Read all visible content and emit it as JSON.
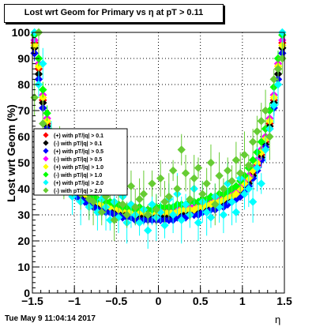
{
  "title": "Lost wrt Geom for Primary vs   η at pT > 0.11",
  "footer_text": "Tue May  9 11:04:14 2017",
  "chart_data": {
    "type": "scatter",
    "title": "Lost wrt Geom for Primary vs   η at pT > 0.11",
    "xlabel": "η",
    "ylabel": "Lost wrt Geom (%)",
    "xlim": [
      -1.5,
      1.5
    ],
    "ylim": [
      0,
      100
    ],
    "x_ticks": [
      "−1.5",
      "−1",
      "−0.5",
      "0",
      "0.5",
      "1",
      "1.5"
    ],
    "y_ticks": [
      "0",
      "10",
      "20",
      "30",
      "40",
      "50",
      "60",
      "70",
      "80",
      "90",
      "100"
    ],
    "grid": true,
    "legend_position": "center-left",
    "legend_entries": [
      "(+) with pT/|q| > 0.1",
      "(-) with pT/|q| > 0.1",
      "(+) with pT/|q| > 0.5",
      "(-) with pT/|q| > 0.5",
      "(+) with pT/|q| > 1.0",
      "(-) with pT/|q| > 1.0",
      "(+) with pT/|q| > 2.0",
      "(-) with pT/|q| > 2.0"
    ],
    "series": [
      {
        "color": "#ff0000",
        "x": [
          -1.475,
          -1.425,
          -1.375,
          -1.325,
          -1.275,
          -1.225,
          -1.175,
          -1.125,
          -1.075,
          -1.025,
          -0.975,
          -0.925,
          -0.875,
          -0.825,
          -0.775,
          -0.725,
          -0.675,
          -0.625,
          -0.575,
          -0.525,
          -0.475,
          -0.425,
          -0.375,
          -0.325,
          -0.275,
          -0.225,
          -0.175,
          -0.125,
          -0.075,
          -0.025,
          0.025,
          0.075,
          0.125,
          0.175,
          0.225,
          0.275,
          0.325,
          0.375,
          0.425,
          0.475,
          0.525,
          0.575,
          0.625,
          0.675,
          0.725,
          0.775,
          0.825,
          0.875,
          0.925,
          0.975,
          1.025,
          1.075,
          1.125,
          1.175,
          1.225,
          1.275,
          1.325,
          1.375,
          1.425,
          1.475
        ],
        "y": [
          96,
          86,
          74,
          65,
          58,
          53,
          49,
          46,
          43,
          41,
          39,
          38,
          37,
          36,
          35,
          34,
          33,
          33,
          32,
          32,
          31,
          31,
          31,
          30,
          30,
          30,
          30,
          30,
          30,
          30,
          30,
          30,
          30,
          30,
          30,
          31,
          31,
          31,
          31,
          32,
          32,
          33,
          33,
          33,
          34,
          35,
          36,
          36,
          37,
          39,
          41,
          43,
          46,
          49,
          53,
          58,
          65,
          74,
          86,
          96
        ]
      },
      {
        "color": "#000000",
        "x": [
          -1.475,
          -1.425,
          -1.375,
          -1.325,
          -1.275,
          -1.225,
          -1.175,
          -1.125,
          -1.075,
          -1.025,
          -0.975,
          -0.925,
          -0.875,
          -0.825,
          -0.775,
          -0.725,
          -0.675,
          -0.625,
          -0.575,
          -0.525,
          -0.475,
          -0.425,
          -0.375,
          -0.325,
          -0.275,
          -0.225,
          -0.175,
          -0.125,
          -0.075,
          -0.025,
          0.025,
          0.075,
          0.125,
          0.175,
          0.225,
          0.275,
          0.325,
          0.375,
          0.425,
          0.475,
          0.525,
          0.575,
          0.625,
          0.675,
          0.725,
          0.775,
          0.825,
          0.875,
          0.925,
          0.975,
          1.025,
          1.075,
          1.125,
          1.175,
          1.225,
          1.275,
          1.325,
          1.375,
          1.425,
          1.475
        ],
        "y": [
          94,
          84,
          73,
          64,
          57,
          52,
          48,
          45,
          42,
          40,
          38,
          37,
          36,
          35,
          34,
          33,
          33,
          32,
          32,
          31,
          31,
          30,
          30,
          30,
          29,
          29,
          29,
          29,
          29,
          29,
          29,
          29,
          29,
          29,
          30,
          30,
          30,
          31,
          31,
          31,
          32,
          32,
          33,
          33,
          34,
          34,
          35,
          36,
          37,
          38,
          40,
          42,
          45,
          48,
          52,
          57,
          64,
          73,
          84,
          94
        ]
      },
      {
        "color": "#0000ff",
        "x": [
          -1.475,
          -1.425,
          -1.375,
          -1.325,
          -1.275,
          -1.225,
          -1.175,
          -1.125,
          -1.075,
          -1.025,
          -0.975,
          -0.925,
          -0.875,
          -0.825,
          -0.775,
          -0.725,
          -0.675,
          -0.625,
          -0.575,
          -0.525,
          -0.475,
          -0.425,
          -0.375,
          -0.325,
          -0.275,
          -0.225,
          -0.175,
          -0.125,
          -0.075,
          -0.025,
          0.025,
          0.075,
          0.125,
          0.175,
          0.225,
          0.275,
          0.325,
          0.375,
          0.425,
          0.475,
          0.525,
          0.575,
          0.625,
          0.675,
          0.725,
          0.775,
          0.825,
          0.875,
          0.925,
          0.975,
          1.025,
          1.075,
          1.125,
          1.175,
          1.225,
          1.275,
          1.325,
          1.375,
          1.425,
          1.475
        ],
        "y": [
          92,
          82,
          71,
          63,
          56,
          51,
          47,
          44,
          41,
          39,
          37,
          36,
          35,
          34,
          33,
          32,
          32,
          31,
          31,
          30,
          30,
          29,
          29,
          29,
          28,
          28,
          28,
          28,
          28,
          28,
          28,
          28,
          28,
          28,
          29,
          29,
          29,
          30,
          30,
          30,
          31,
          31,
          32,
          32,
          33,
          33,
          34,
          35,
          36,
          37,
          39,
          41,
          44,
          47,
          51,
          56,
          63,
          71,
          82,
          92
        ]
      },
      {
        "color": "#ff00ff",
        "x": [
          -1.475,
          -1.425,
          -1.375,
          -1.325,
          -1.275,
          -1.225,
          -1.175,
          -1.125,
          -1.075,
          -1.025,
          -0.975,
          -0.925,
          -0.875,
          -0.825,
          -0.775,
          -0.725,
          -0.675,
          -0.625,
          -0.575,
          -0.525,
          -0.475,
          -0.425,
          -0.375,
          -0.325,
          -0.275,
          -0.225,
          -0.175,
          -0.125,
          -0.075,
          -0.025,
          0.025,
          0.075,
          0.125,
          0.175,
          0.225,
          0.275,
          0.325,
          0.375,
          0.425,
          0.475,
          0.525,
          0.575,
          0.625,
          0.675,
          0.725,
          0.775,
          0.825,
          0.875,
          0.925,
          0.975,
          1.025,
          1.075,
          1.125,
          1.175,
          1.225,
          1.275,
          1.325,
          1.375,
          1.425,
          1.475
        ],
        "y": [
          97,
          88,
          76,
          67,
          60,
          55,
          51,
          48,
          45,
          43,
          41,
          40,
          39,
          38,
          37,
          36,
          35,
          35,
          34,
          34,
          33,
          33,
          33,
          32,
          32,
          32,
          32,
          32,
          32,
          32,
          32,
          32,
          32,
          32,
          32,
          33,
          33,
          33,
          33,
          34,
          34,
          35,
          35,
          36,
          36,
          37,
          38,
          38,
          39,
          41,
          43,
          45,
          48,
          51,
          55,
          60,
          67,
          76,
          88,
          97
        ]
      },
      {
        "color": "#ffff00",
        "x": [
          -1.475,
          -1.425,
          -1.375,
          -1.325,
          -1.275,
          -1.225,
          -1.175,
          -1.125,
          -1.075,
          -1.025,
          -0.975,
          -0.925,
          -0.875,
          -0.825,
          -0.775,
          -0.725,
          -0.675,
          -0.625,
          -0.575,
          -0.525,
          -0.475,
          -0.425,
          -0.375,
          -0.325,
          -0.275,
          -0.225,
          -0.175,
          -0.125,
          -0.075,
          -0.025,
          0.025,
          0.075,
          0.125,
          0.175,
          0.225,
          0.275,
          0.325,
          0.375,
          0.425,
          0.475,
          0.525,
          0.575,
          0.625,
          0.675,
          0.725,
          0.775,
          0.825,
          0.875,
          0.925,
          0.975,
          1.025,
          1.075,
          1.125,
          1.175,
          1.225,
          1.275,
          1.325,
          1.375,
          1.425,
          1.475
        ],
        "y": [
          95,
          87,
          75,
          66,
          59,
          54,
          50,
          47,
          44,
          42,
          40,
          39,
          38,
          37,
          36,
          35,
          34,
          34,
          33,
          33,
          32,
          32,
          32,
          31,
          31,
          31,
          31,
          31,
          31,
          31,
          31,
          31,
          31,
          31,
          31,
          32,
          32,
          32,
          32,
          33,
          33,
          34,
          34,
          35,
          35,
          36,
          37,
          37,
          38,
          40,
          42,
          44,
          47,
          50,
          54,
          59,
          66,
          75,
          87,
          95
        ]
      },
      {
        "color": "#00ff00",
        "x": [
          -1.475,
          -1.425,
          -1.375,
          -1.325,
          -1.275,
          -1.225,
          -1.175,
          -1.125,
          -1.075,
          -1.025,
          -0.975,
          -0.925,
          -0.875,
          -0.825,
          -0.775,
          -0.725,
          -0.675,
          -0.625,
          -0.575,
          -0.525,
          -0.475,
          -0.425,
          -0.375,
          -0.325,
          -0.275,
          -0.225,
          -0.175,
          -0.125,
          -0.075,
          -0.025,
          0.025,
          0.075,
          0.125,
          0.175,
          0.225,
          0.275,
          0.325,
          0.375,
          0.425,
          0.475,
          0.525,
          0.575,
          0.625,
          0.675,
          0.725,
          0.775,
          0.825,
          0.875,
          0.925,
          0.975,
          1.025,
          1.075,
          1.125,
          1.175,
          1.225,
          1.275,
          1.325,
          1.375,
          1.425,
          1.475
        ],
        "y": [
          99,
          90,
          78,
          69,
          62,
          57,
          53,
          49,
          46,
          44,
          42,
          41,
          40,
          38,
          37,
          36,
          36,
          35,
          35,
          34,
          34,
          33,
          33,
          33,
          32,
          33,
          32,
          32,
          32,
          33,
          33,
          33,
          33,
          33,
          34,
          34,
          34,
          35,
          35,
          35,
          36,
          36,
          37,
          37,
          38,
          38,
          39,
          40,
          41,
          43,
          45,
          48,
          51,
          54,
          58,
          63,
          70,
          79,
          90,
          99
        ]
      },
      {
        "color": "#00ffff",
        "x": [
          -1.475,
          -1.425,
          -1.375,
          -1.325,
          -1.275,
          -1.225,
          -1.175,
          -1.125,
          -1.075,
          -1.025,
          -0.975,
          -0.925,
          -0.875,
          -0.825,
          -0.775,
          -0.725,
          -0.675,
          -0.625,
          -0.575,
          -0.525,
          -0.475,
          -0.425,
          -0.375,
          -0.325,
          -0.275,
          -0.225,
          -0.175,
          -0.125,
          -0.075,
          -0.025,
          0.025,
          0.075,
          0.125,
          0.175,
          0.225,
          0.275,
          0.325,
          0.375,
          0.425,
          0.475,
          0.525,
          0.575,
          0.625,
          0.675,
          0.725,
          0.775,
          0.825,
          0.875,
          0.925,
          0.975,
          1.025,
          1.075,
          1.125,
          1.175,
          1.225,
          1.275,
          1.325,
          1.375,
          1.425,
          1.475
        ],
        "y": [
          100,
          80,
          88,
          55,
          58,
          48,
          53,
          42,
          45,
          37,
          43,
          35,
          45,
          33,
          39,
          31,
          36,
          33,
          28,
          35,
          29,
          37,
          27,
          34,
          30,
          27,
          32,
          24,
          34,
          29,
          31,
          26,
          36,
          30,
          38,
          28,
          34,
          30,
          40,
          27,
          35,
          31,
          29,
          37,
          33,
          30,
          42,
          35,
          31,
          44,
          38,
          40,
          35,
          48,
          42,
          55,
          63,
          72,
          80,
          100
        ]
      },
      {
        "color": "#66cc33",
        "x": [
          -1.475,
          -1.425,
          -1.375,
          -1.325,
          -1.275,
          -1.225,
          -1.175,
          -1.125,
          -1.075,
          -1.025,
          -0.975,
          -0.925,
          -0.875,
          -0.825,
          -0.775,
          -0.725,
          -0.675,
          -0.625,
          -0.575,
          -0.525,
          -0.475,
          -0.425,
          -0.375,
          -0.325,
          -0.275,
          -0.225,
          -0.175,
          -0.125,
          -0.075,
          -0.025,
          0.025,
          0.075,
          0.125,
          0.175,
          0.225,
          0.275,
          0.325,
          0.375,
          0.425,
          0.475,
          0.525,
          0.575,
          0.625,
          0.675,
          0.725,
          0.775,
          0.825,
          0.875,
          0.925,
          0.975,
          1.025,
          1.075,
          1.125,
          1.175,
          1.225,
          1.275,
          1.325,
          1.375,
          1.425,
          1.475
        ],
        "y": [
          75,
          100,
          65,
          60,
          56,
          50,
          57,
          44,
          48,
          41,
          47,
          38,
          46,
          36,
          35,
          40,
          31,
          37,
          43,
          28,
          39,
          34,
          30,
          41,
          33,
          36,
          38,
          30,
          42,
          32,
          44,
          35,
          37,
          47,
          40,
          55,
          46,
          36,
          44,
          48,
          38,
          42,
          50,
          34,
          45,
          40,
          47,
          43,
          51,
          46,
          53,
          49,
          58,
          62,
          66,
          70,
          60,
          82,
          86,
          90
        ]
      }
    ]
  }
}
